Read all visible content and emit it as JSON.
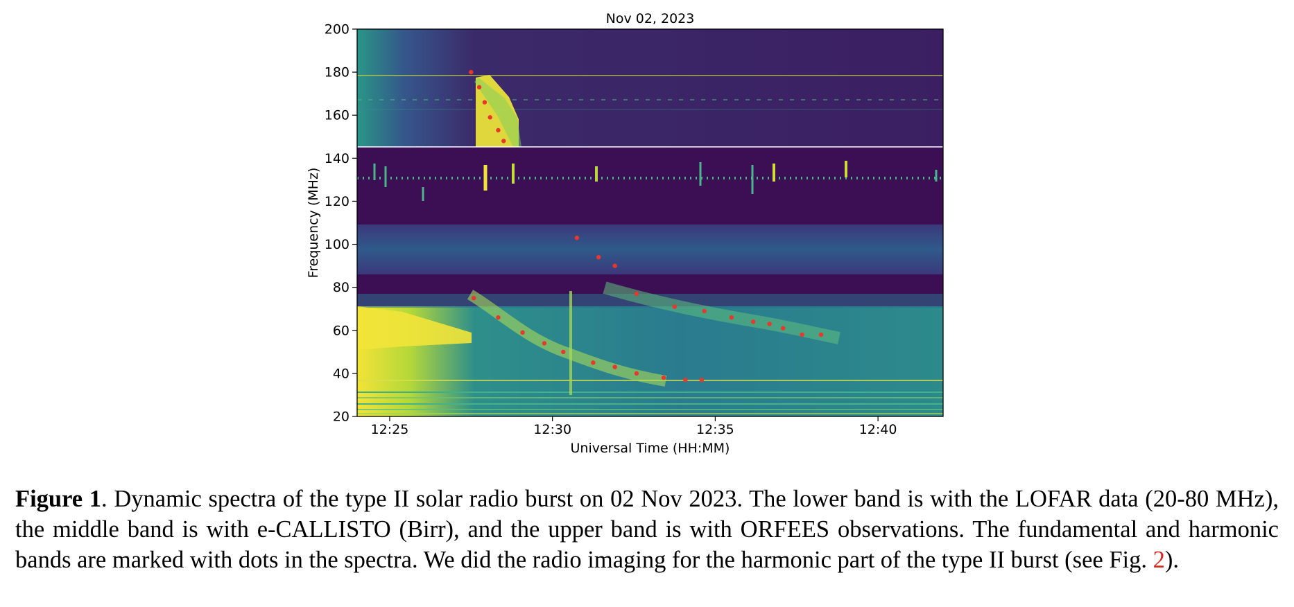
{
  "chart_data": {
    "type": "heatmap",
    "title": "Nov 02, 2023",
    "xlabel": "Universal Time (HH:MM)",
    "ylabel": "Frequency (MHz)",
    "xlim": [
      "12:24",
      "12:42"
    ],
    "ylim": [
      20,
      200
    ],
    "xticks": [
      "12:25",
      "12:30",
      "12:35",
      "12:40"
    ],
    "yticks": [
      20,
      40,
      60,
      80,
      100,
      120,
      140,
      160,
      180,
      200
    ],
    "colormap": "viridis",
    "colors": {
      "background": "#3b0f53",
      "mid": "#2a788e",
      "high": "#fde725",
      "marker": "#e8372b"
    },
    "bands": [
      {
        "instrument": "LOFAR",
        "freq_range": [
          20,
          80
        ]
      },
      {
        "instrument": "e-CALLISTO (Birr)",
        "freq_range": [
          80,
          145
        ]
      },
      {
        "instrument": "ORFEES",
        "freq_range": [
          145,
          200
        ]
      }
    ],
    "series": [
      {
        "values": [
          {
            "t": "12:27:30",
            "f": 180
          },
          {
            "t": "12:27:45",
            "f": 173
          },
          {
            "t": "12:27:55",
            "f": 166
          },
          {
            "t": "12:28:05",
            "f": 159
          },
          {
            "t": "12:28:20",
            "f": 153
          },
          {
            "t": "12:28:30",
            "f": 148
          }
        ]
      },
      {
        "values": [
          {
            "t": "12:27:35",
            "f": 75
          },
          {
            "t": "12:28:20",
            "f": 66
          },
          {
            "t": "12:29:05",
            "f": 59
          },
          {
            "t": "12:29:45",
            "f": 54
          },
          {
            "t": "12:30:20",
            "f": 50
          },
          {
            "t": "12:31:15",
            "f": 45
          },
          {
            "t": "12:31:55",
            "f": 43
          },
          {
            "t": "12:32:35",
            "f": 40
          },
          {
            "t": "12:33:25",
            "f": 38
          },
          {
            "t": "12:34:05",
            "f": 37
          },
          {
            "t": "12:34:35",
            "f": 37
          }
        ]
      },
      {
        "values": [
          {
            "t": "12:30:45",
            "f": 103
          },
          {
            "t": "12:31:25",
            "f": 94
          },
          {
            "t": "12:31:55",
            "f": 90
          },
          {
            "t": "12:32:35",
            "f": 77
          },
          {
            "t": "12:33:45",
            "f": 71
          },
          {
            "t": "12:34:40",
            "f": 69
          },
          {
            "t": "12:35:30",
            "f": 66
          },
          {
            "t": "12:36:10",
            "f": 64
          },
          {
            "t": "12:36:40",
            "f": 63
          },
          {
            "t": "12:37:05",
            "f": 61
          },
          {
            "t": "12:37:40",
            "f": 58
          },
          {
            "t": "12:38:15",
            "f": 58
          }
        ]
      }
    ]
  },
  "caption": {
    "label": "Figure 1",
    "text": ". Dynamic spectra of the type II solar radio burst on 02 Nov 2023. The lower band is with the LOFAR data (20-80 MHz), the middle band is with e-CALLISTO (Birr), and the upper band is with ORFEES observations. The fundamental and harmonic bands are marked with dots in the spectra. We did the radio imaging for the harmonic part of the type II burst (see Fig. ",
    "ref": "2",
    "tail": ")."
  }
}
